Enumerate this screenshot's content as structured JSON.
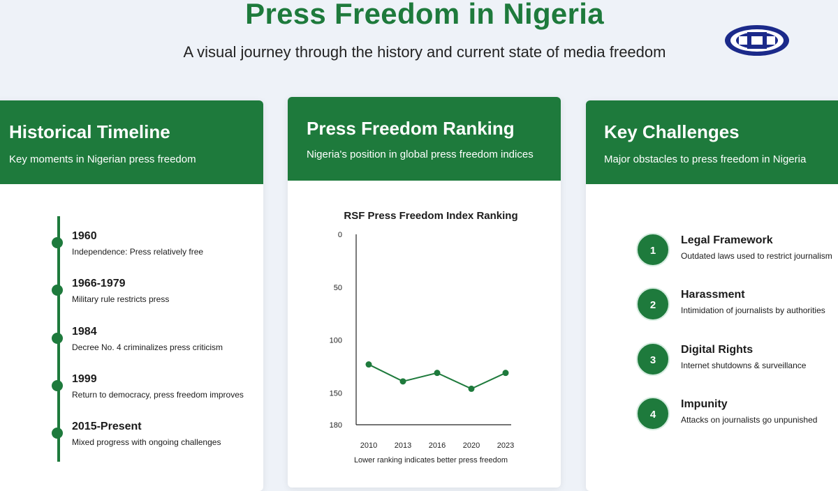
{
  "header": {
    "title": "Press Freedom in Nigeria",
    "subtitle": "A visual journey through the history and current state of media freedom",
    "logo_icon": "organization-logo"
  },
  "colors": {
    "primary": "#1e7a3c",
    "background": "#eef2f8",
    "card": "#ffffff"
  },
  "timeline": {
    "title": "Historical Timeline",
    "subtitle": "Key moments in Nigerian press freedom",
    "events": [
      {
        "year": "1960",
        "desc": "Independence: Press relatively free"
      },
      {
        "year": "1966-1979",
        "desc": "Military rule restricts press"
      },
      {
        "year": "1984",
        "desc": "Decree No. 4 criminalizes press criticism"
      },
      {
        "year": "1999",
        "desc": "Return to democracy, press freedom improves"
      },
      {
        "year": "2015-Present",
        "desc": "Mixed progress with ongoing challenges"
      }
    ]
  },
  "ranking": {
    "title": "Press Freedom Ranking",
    "subtitle": "Nigeria's position in global press freedom indices"
  },
  "chart_data": {
    "type": "line",
    "title": "RSF Press Freedom Index Ranking",
    "note": "Lower ranking indicates better press freedom",
    "x": [
      "2010",
      "2013",
      "2016",
      "2020",
      "2023"
    ],
    "series": [
      {
        "values": [
          123,
          139,
          131,
          146,
          131
        ]
      }
    ],
    "ylim": [
      0,
      180
    ],
    "y_inverted": true,
    "y_ticks": [
      0,
      50,
      100,
      150,
      180
    ],
    "grid": false,
    "color": "#1e7a3c"
  },
  "challenges": {
    "title": "Key Challenges",
    "subtitle": "Major obstacles to press freedom in Nigeria",
    "items": [
      {
        "num": "1",
        "title": "Legal Framework",
        "desc": "Outdated laws used to restrict journalism"
      },
      {
        "num": "2",
        "title": "Harassment",
        "desc": "Intimidation of journalists by authorities"
      },
      {
        "num": "3",
        "title": "Digital Rights",
        "desc": "Internet shutdowns & surveillance"
      },
      {
        "num": "4",
        "title": "Impunity",
        "desc": "Attacks on journalists go unpunished"
      }
    ]
  }
}
